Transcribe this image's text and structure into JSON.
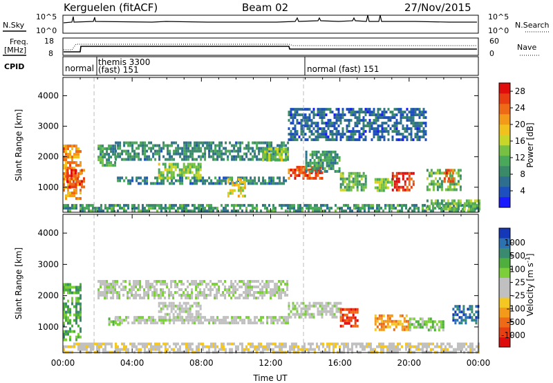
{
  "header": {
    "station": "Kerguelen (fitACF)",
    "beam": "Beam 02",
    "date": "27/Nov/2015"
  },
  "summary_panels": {
    "nsky": {
      "left_label": "N.Sky",
      "left_ticks": [
        "10^5",
        "10^0"
      ],
      "right_label": "N.Search",
      "right_ticks": [
        "10^5",
        "10^0"
      ]
    },
    "freq": {
      "left_label_1": "Freq.",
      "left_label_2": "[MHz]",
      "left_ticks": [
        "18",
        "8"
      ],
      "right_label": "Nave",
      "right_ticks": [
        "60",
        "0"
      ]
    },
    "cpid": {
      "left_label": "CPID",
      "segments": [
        {
          "label": "normal",
          "start_h": 0.0,
          "end_h": 1.8
        },
        {
          "label_1": "themis 3300",
          "label_2": "(fast) 151",
          "start_h": 1.8,
          "end_h": 13.9
        },
        {
          "label": "normal (fast) 151",
          "start_h": 13.9,
          "end_h": 24.0
        }
      ]
    }
  },
  "chart_data": [
    {
      "type": "heatmap",
      "name": "power",
      "ylabel": "Slant Range [km]",
      "xlabel": "",
      "xlim_hours": [
        0,
        24
      ],
      "ylim": [
        180,
        4600
      ],
      "yticks": [
        "1000",
        "2000",
        "3000",
        "4000"
      ],
      "colorbar": {
        "label": "Power [dB]",
        "ticks": [
          "4",
          "8",
          "12",
          "16",
          "20",
          "24",
          "28"
        ],
        "range": [
          0,
          30
        ],
        "colors": [
          "#1a1aff",
          "#1d4fbf",
          "#2e6e8e",
          "#3a8a6a",
          "#4aa85a",
          "#76c043",
          "#c8d62a",
          "#f1c21d",
          "#f39a1a",
          "#ef6a16",
          "#e83d12",
          "#e00d0d"
        ]
      },
      "regions": [
        {
          "t0": 0.0,
          "t1": 1.0,
          "r0": 600,
          "r1": 2400,
          "level": 22
        },
        {
          "t0": 0.2,
          "t1": 1.2,
          "r0": 1000,
          "r1": 1600,
          "level": 27
        },
        {
          "t0": 2.0,
          "t1": 3.0,
          "r0": 1700,
          "r1": 2400,
          "level": 10
        },
        {
          "t0": 3.0,
          "t1": 13.0,
          "r0": 1900,
          "r1": 2500,
          "level": 8
        },
        {
          "t0": 3.0,
          "t1": 13.0,
          "r0": 1150,
          "r1": 1350,
          "level": 7
        },
        {
          "t0": 5.5,
          "t1": 8.0,
          "r0": 1300,
          "r1": 1800,
          "level": 14
        },
        {
          "t0": 9.5,
          "t1": 10.5,
          "r0": 700,
          "r1": 1300,
          "level": 17
        },
        {
          "t0": 11.5,
          "t1": 13.0,
          "r0": 1900,
          "r1": 2300,
          "level": 14
        },
        {
          "t0": 13.0,
          "t1": 15.0,
          "r0": 1300,
          "r1": 1700,
          "level": 26
        },
        {
          "t0": 14.0,
          "t1": 16.0,
          "r0": 1500,
          "r1": 2200,
          "level": 9
        },
        {
          "t0": 16.0,
          "t1": 17.5,
          "r0": 900,
          "r1": 1500,
          "level": 12
        },
        {
          "t0": 18.0,
          "t1": 19.0,
          "r0": 900,
          "r1": 1300,
          "level": 14
        },
        {
          "t0": 19.0,
          "t1": 20.2,
          "r0": 900,
          "r1": 1500,
          "level": 29
        },
        {
          "t0": 21.0,
          "t1": 23.0,
          "r0": 900,
          "r1": 1600,
          "level": 12
        },
        {
          "t0": 22.0,
          "t1": 22.5,
          "r0": 1200,
          "r1": 1600,
          "level": 25
        },
        {
          "t0": 13.0,
          "t1": 21.0,
          "r0": 2600,
          "r1": 3600,
          "level": 5
        },
        {
          "t0": 0.0,
          "t1": 24.0,
          "r0": 200,
          "r1": 450,
          "level": 9
        },
        {
          "t0": 21.0,
          "t1": 24.0,
          "r0": 300,
          "r1": 600,
          "level": 12
        }
      ]
    },
    {
      "type": "heatmap",
      "name": "velocity",
      "ylabel": "Slant Range [km]",
      "xlabel": "Time UT",
      "xlim_hours": [
        0,
        24
      ],
      "xticks": [
        "00:00",
        "04:00",
        "08:00",
        "12:00",
        "16:00",
        "20:00",
        "00:00"
      ],
      "ylim": [
        180,
        4600
      ],
      "yticks": [
        "1000",
        "2000",
        "3000",
        "4000"
      ],
      "colorbar": {
        "label": "Velocity",
        "label_unit": "[m s",
        "label_exp": "-1",
        "label_close": "]",
        "ticks": [
          "1000",
          "500",
          "100",
          "25",
          "-25",
          "-100",
          "-500",
          "-1000"
        ],
        "colors": [
          "#1538b8",
          "#2c72b0",
          "#3a8a70",
          "#4fae3e",
          "#7ccf3b",
          "#c0c0c0",
          "#c0c0c0",
          "#f5c723",
          "#f39a1a",
          "#ee6a16",
          "#e63f12",
          "#de0d0d"
        ]
      },
      "regions": [
        {
          "t0": 0.0,
          "t1": 1.0,
          "r0": 600,
          "r1": 2400,
          "level": 3
        },
        {
          "t0": 2.0,
          "t1": 13.0,
          "r0": 1900,
          "r1": 2500,
          "level": 5
        },
        {
          "t0": 3.0,
          "t1": 13.0,
          "r0": 1150,
          "r1": 1350,
          "level": 5
        },
        {
          "t0": 5.5,
          "t1": 8.0,
          "r0": 1300,
          "r1": 1800,
          "level": 5
        },
        {
          "t0": 2.5,
          "t1": 3.3,
          "r0": 1100,
          "r1": 1300,
          "level": 4
        },
        {
          "t0": 13.0,
          "t1": 16.0,
          "r0": 1300,
          "r1": 1800,
          "level": 5
        },
        {
          "t0": 16.0,
          "t1": 17.0,
          "r0": 1000,
          "r1": 1600,
          "level": 10
        },
        {
          "t0": 18.0,
          "t1": 20.0,
          "r0": 900,
          "r1": 1400,
          "level": 8
        },
        {
          "t0": 20.0,
          "t1": 22.0,
          "r0": 900,
          "r1": 1300,
          "level": 4
        },
        {
          "t0": 22.5,
          "t1": 24.0,
          "r0": 1100,
          "r1": 1700,
          "level": 1
        },
        {
          "t0": 0.0,
          "t1": 24.0,
          "r0": 200,
          "r1": 500,
          "level": 6
        }
      ]
    }
  ]
}
